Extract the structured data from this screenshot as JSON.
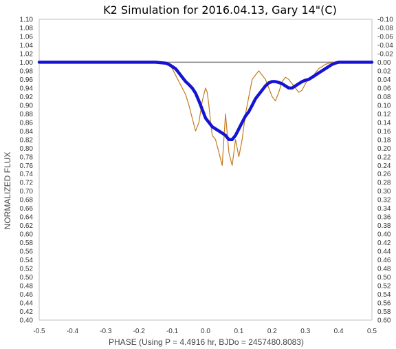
{
  "chart_data": {
    "type": "line",
    "title": "K2 Simulation for 2016.04.13, Gary 14\"(C)",
    "xlabel": "PHASE (Using P = 4.4916 hr, BJDo = 2457480.8083)",
    "ylabel": "NORMALIZED FLUX",
    "xlim": [
      -0.5,
      0.5
    ],
    "ylim": [
      0.4,
      1.1
    ],
    "y2lim": [
      -0.1,
      0.6
    ],
    "x_ticks": [
      "-0.5",
      "-0.4",
      "-0.3",
      "-0.2",
      "-0.1",
      "0.0",
      "0.1",
      "0.2",
      "0.3",
      "0.4",
      "0.5"
    ],
    "y_ticks": [
      "0.40",
      "0.42",
      "0.44",
      "0.46",
      "0.48",
      "0.50",
      "0.52",
      "0.54",
      "0.56",
      "0.58",
      "0.60",
      "0.62",
      "0.64",
      "0.66",
      "0.68",
      "0.70",
      "0.72",
      "0.74",
      "0.76",
      "0.78",
      "0.80",
      "0.82",
      "0.84",
      "0.86",
      "0.88",
      "0.90",
      "0.92",
      "0.94",
      "0.96",
      "0.98",
      "1.00",
      "1.02",
      "1.04",
      "1.06",
      "1.08",
      "1.10"
    ],
    "y2_ticks": [
      "0.60",
      "0.58",
      "0.56",
      "0.54",
      "0.52",
      "0.50",
      "0.48",
      "0.46",
      "0.44",
      "0.42",
      "0.40",
      "0.38",
      "0.36",
      "0.34",
      "0.32",
      "0.30",
      "0.28",
      "0.26",
      "0.24",
      "0.22",
      "0.20",
      "0.18",
      "0.16",
      "0.14",
      "0.12",
      "0.10",
      "0.08",
      "0.06",
      "0.04",
      "0.02",
      "0.00",
      "-0.02",
      "-0.04",
      "-0.06",
      "-0.08",
      "-0.10"
    ],
    "grid": false,
    "reference_line": {
      "y": 1.0,
      "color": "#808080"
    },
    "series": [
      {
        "color": "#c47a1e",
        "style": "thin",
        "x": [
          -0.5,
          -0.16,
          -0.12,
          -0.11,
          -0.1,
          -0.09,
          -0.08,
          -0.07,
          -0.06,
          -0.05,
          -0.04,
          -0.03,
          -0.02,
          -0.01,
          0.0,
          0.005,
          0.01,
          0.015,
          0.02,
          0.03,
          0.04,
          0.05,
          0.06,
          0.07,
          0.08,
          0.09,
          0.1,
          0.11,
          0.12,
          0.14,
          0.16,
          0.18,
          0.19,
          0.2,
          0.21,
          0.22,
          0.23,
          0.24,
          0.25,
          0.26,
          0.27,
          0.28,
          0.29,
          0.3,
          0.31,
          0.32,
          0.33,
          0.34,
          0.35,
          0.36,
          0.38,
          0.4,
          0.42,
          0.5
        ],
        "y": [
          1.0,
          1.0,
          0.999,
          0.995,
          0.985,
          0.97,
          0.955,
          0.94,
          0.925,
          0.9,
          0.87,
          0.84,
          0.86,
          0.91,
          0.94,
          0.93,
          0.9,
          0.86,
          0.83,
          0.82,
          0.79,
          0.76,
          0.88,
          0.79,
          0.76,
          0.82,
          0.78,
          0.82,
          0.88,
          0.96,
          0.98,
          0.96,
          0.94,
          0.92,
          0.91,
          0.93,
          0.955,
          0.965,
          0.96,
          0.95,
          0.94,
          0.93,
          0.935,
          0.95,
          0.96,
          0.965,
          0.975,
          0.985,
          0.99,
          0.995,
          1.0,
          1.0,
          1.0,
          1.0
        ]
      },
      {
        "color": "#1414d2",
        "style": "thick",
        "x": [
          -0.5,
          -0.15,
          -0.12,
          -0.11,
          -0.1,
          -0.09,
          -0.08,
          -0.07,
          -0.06,
          -0.05,
          -0.04,
          -0.03,
          -0.02,
          -0.01,
          0.0,
          0.01,
          0.02,
          0.03,
          0.04,
          0.05,
          0.06,
          0.07,
          0.08,
          0.09,
          0.1,
          0.11,
          0.12,
          0.13,
          0.14,
          0.15,
          0.16,
          0.17,
          0.18,
          0.19,
          0.2,
          0.21,
          0.22,
          0.23,
          0.24,
          0.25,
          0.26,
          0.27,
          0.28,
          0.29,
          0.3,
          0.31,
          0.32,
          0.33,
          0.34,
          0.35,
          0.36,
          0.37,
          0.38,
          0.39,
          0.4,
          0.41,
          0.42,
          0.43,
          0.5
        ],
        "y": [
          1.0,
          1.0,
          0.998,
          0.995,
          0.99,
          0.985,
          0.975,
          0.965,
          0.955,
          0.948,
          0.94,
          0.928,
          0.91,
          0.89,
          0.87,
          0.86,
          0.85,
          0.845,
          0.84,
          0.835,
          0.83,
          0.82,
          0.82,
          0.83,
          0.845,
          0.86,
          0.875,
          0.885,
          0.9,
          0.915,
          0.925,
          0.935,
          0.945,
          0.952,
          0.955,
          0.955,
          0.953,
          0.95,
          0.945,
          0.94,
          0.94,
          0.945,
          0.95,
          0.955,
          0.958,
          0.96,
          0.965,
          0.97,
          0.975,
          0.98,
          0.985,
          0.99,
          0.995,
          0.998,
          1.0,
          1.0,
          1.0,
          1.0,
          1.0
        ]
      }
    ]
  }
}
